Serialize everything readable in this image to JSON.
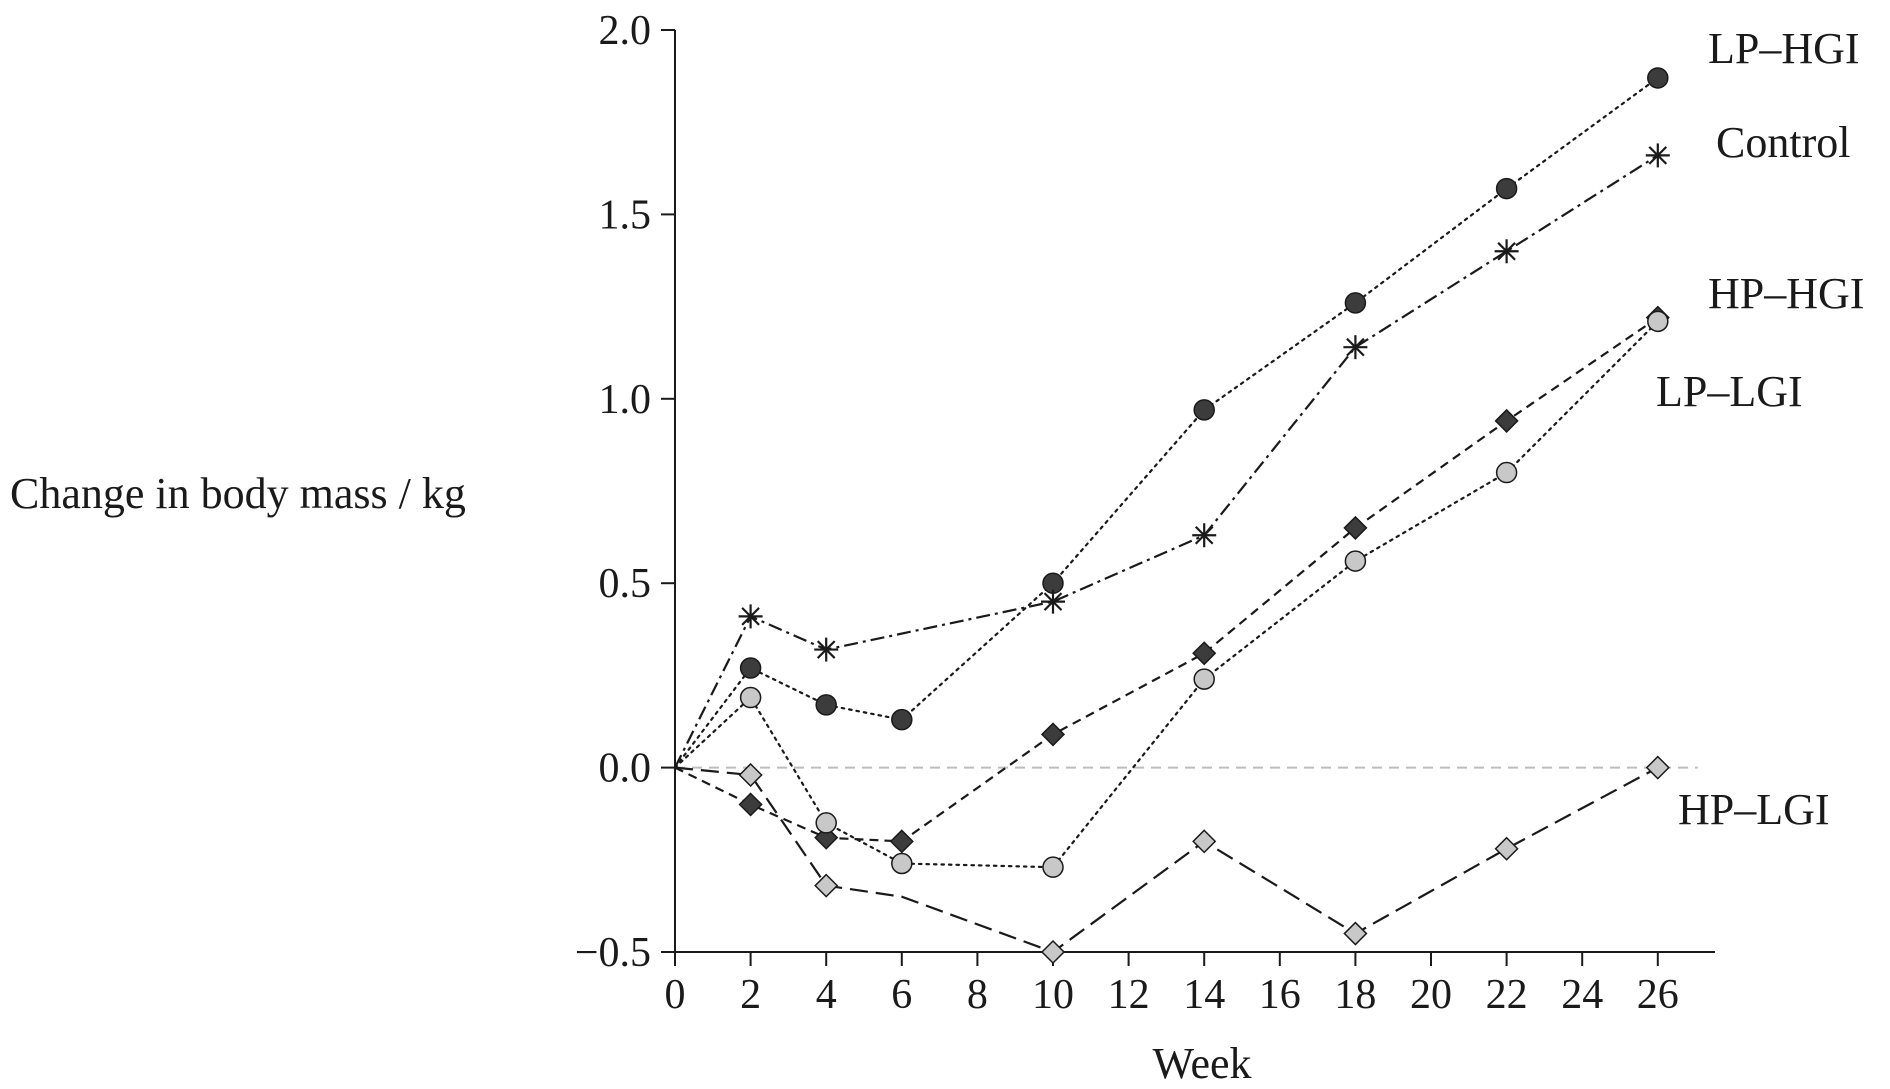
{
  "chart_data": {
    "type": "line",
    "xlabel": "Week",
    "ylabel": "Change in body mass / kg",
    "xlim": [
      0,
      27
    ],
    "ylim": [
      -0.5,
      2.0
    ],
    "xticks": [
      0,
      2,
      4,
      6,
      8,
      10,
      12,
      14,
      16,
      18,
      20,
      22,
      24,
      26
    ],
    "yticks": [
      -0.5,
      0.0,
      0.5,
      1.0,
      1.5,
      2.0
    ],
    "ytick_labels": [
      "−0.5",
      "0.0",
      "0.5",
      "1.0",
      "1.5",
      "2.0"
    ],
    "reference_line": {
      "y": 0.0,
      "color": "#bdbdbd"
    },
    "series": [
      {
        "name": "LP–HGI",
        "marker": "circle",
        "marker_fill": "#3c3c3c",
        "line_style": "dotted",
        "x": [
          0,
          2,
          4,
          6,
          10,
          14,
          18,
          22,
          26
        ],
        "y": [
          0.0,
          0.27,
          0.17,
          0.13,
          0.5,
          0.97,
          1.26,
          1.57,
          1.87
        ]
      },
      {
        "name": "Control",
        "marker": "asterisk",
        "marker_fill": "#1a1a1a",
        "line_style": "dashdot",
        "x": [
          0,
          2,
          4,
          10,
          14,
          18,
          22,
          26
        ],
        "y": [
          0.0,
          0.41,
          0.32,
          0.45,
          0.63,
          1.14,
          1.4,
          1.66
        ]
      },
      {
        "name": "HP–HGI",
        "marker": "diamond",
        "marker_fill": "#3c3c3c",
        "line_style": "dashed",
        "x": [
          0,
          2,
          4,
          6,
          10,
          14,
          18,
          22,
          26
        ],
        "y": [
          0.0,
          -0.1,
          -0.19,
          -0.2,
          0.09,
          0.31,
          0.65,
          0.94,
          1.22
        ]
      },
      {
        "name": "LP–LGI",
        "marker": "circle",
        "marker_fill": "#c8c8c8",
        "line_style": "dotted",
        "x": [
          0,
          2,
          4,
          6,
          10,
          14,
          18,
          22,
          26
        ],
        "y": [
          0.0,
          0.19,
          -0.15,
          -0.26,
          -0.27,
          0.24,
          0.56,
          0.8,
          1.21
        ]
      },
      {
        "name": "HP–LGI",
        "marker": "diamond",
        "marker_fill": "#c8c8c8",
        "line_style": "longdash",
        "x": [
          0,
          2,
          4,
          6,
          10,
          14,
          18,
          22,
          26
        ],
        "y": [
          0.0,
          -0.02,
          -0.32,
          -0.35,
          -0.5,
          -0.2,
          -0.45,
          -0.22,
          0.0
        ],
        "marker_mask": [
          false,
          true,
          true,
          false,
          true,
          true,
          true,
          true,
          true
        ]
      }
    ]
  }
}
